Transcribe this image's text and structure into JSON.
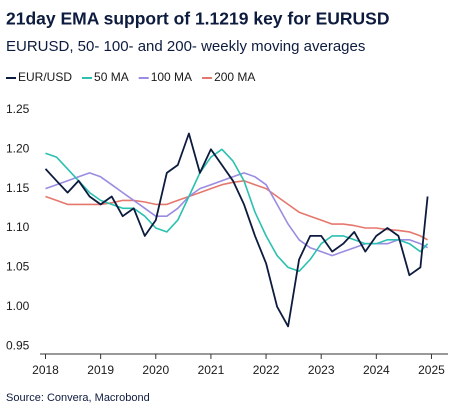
{
  "chart_data": {
    "type": "line",
    "title": "21day EMA support of 1.1219 key for EURUSD",
    "subtitle": "EURUSD, 50- 100- and 200- weekly moving averages",
    "source": "Source: Convera, Macrobond",
    "x": [
      2018,
      2018.2,
      2018.4,
      2018.6,
      2018.8,
      2019,
      2019.2,
      2019.4,
      2019.6,
      2019.8,
      2020,
      2020.2,
      2020.4,
      2020.6,
      2020.8,
      2021,
      2021.2,
      2021.4,
      2021.6,
      2021.8,
      2022,
      2022.2,
      2022.4,
      2022.6,
      2022.8,
      2023,
      2023.2,
      2023.4,
      2023.6,
      2023.8,
      2024,
      2024.2,
      2024.4,
      2024.6,
      2024.8,
      2024.93
    ],
    "series": [
      {
        "name": "EUR/USD",
        "color": "#0d1b3e",
        "values": [
          1.175,
          1.16,
          1.145,
          1.16,
          1.14,
          1.13,
          1.14,
          1.115,
          1.125,
          1.09,
          1.11,
          1.17,
          1.18,
          1.22,
          1.17,
          1.2,
          1.18,
          1.16,
          1.13,
          1.09,
          1.055,
          1.0,
          0.975,
          1.06,
          1.09,
          1.09,
          1.07,
          1.08,
          1.095,
          1.07,
          1.09,
          1.1,
          1.09,
          1.04,
          1.05,
          1.14
        ]
      },
      {
        "name": "50 MA",
        "color": "#2bc0b0",
        "values": [
          1.195,
          1.19,
          1.175,
          1.16,
          1.145,
          1.135,
          1.13,
          1.125,
          1.125,
          1.115,
          1.1,
          1.095,
          1.11,
          1.14,
          1.17,
          1.19,
          1.2,
          1.185,
          1.16,
          1.12,
          1.09,
          1.065,
          1.05,
          1.045,
          1.06,
          1.08,
          1.09,
          1.09,
          1.085,
          1.08,
          1.08,
          1.085,
          1.085,
          1.08,
          1.07,
          1.08
        ]
      },
      {
        "name": "100 MA",
        "color": "#9a8ce0",
        "values": [
          1.15,
          1.155,
          1.16,
          1.165,
          1.17,
          1.165,
          1.155,
          1.145,
          1.135,
          1.125,
          1.115,
          1.115,
          1.125,
          1.14,
          1.15,
          1.155,
          1.16,
          1.165,
          1.17,
          1.165,
          1.155,
          1.13,
          1.105,
          1.085,
          1.075,
          1.07,
          1.065,
          1.07,
          1.075,
          1.08,
          1.08,
          1.08,
          1.085,
          1.085,
          1.08,
          1.075
        ]
      },
      {
        "name": "200 MA",
        "color": "#e5786d",
        "values": [
          1.14,
          1.135,
          1.13,
          1.13,
          1.13,
          1.13,
          1.132,
          1.135,
          1.135,
          1.133,
          1.13,
          1.13,
          1.135,
          1.14,
          1.145,
          1.15,
          1.155,
          1.158,
          1.16,
          1.155,
          1.15,
          1.14,
          1.13,
          1.12,
          1.115,
          1.11,
          1.105,
          1.105,
          1.103,
          1.1,
          1.1,
          1.098,
          1.097,
          1.095,
          1.09,
          1.085
        ]
      }
    ],
    "xlim": [
      2017.9,
      2025.3
    ],
    "xticks": [
      2018,
      2019,
      2020,
      2021,
      2022,
      2023,
      2024,
      2025
    ],
    "ylim": [
      0.94,
      1.26
    ],
    "yticks": [
      0.95,
      {
        "value": 1,
        "label": "1.00"
      },
      1.05,
      {
        "value": 1.1,
        "label": "1.10"
      },
      1.15,
      {
        "value": 1.2,
        "label": "1.20"
      },
      1.25
    ],
    "grid": false
  }
}
